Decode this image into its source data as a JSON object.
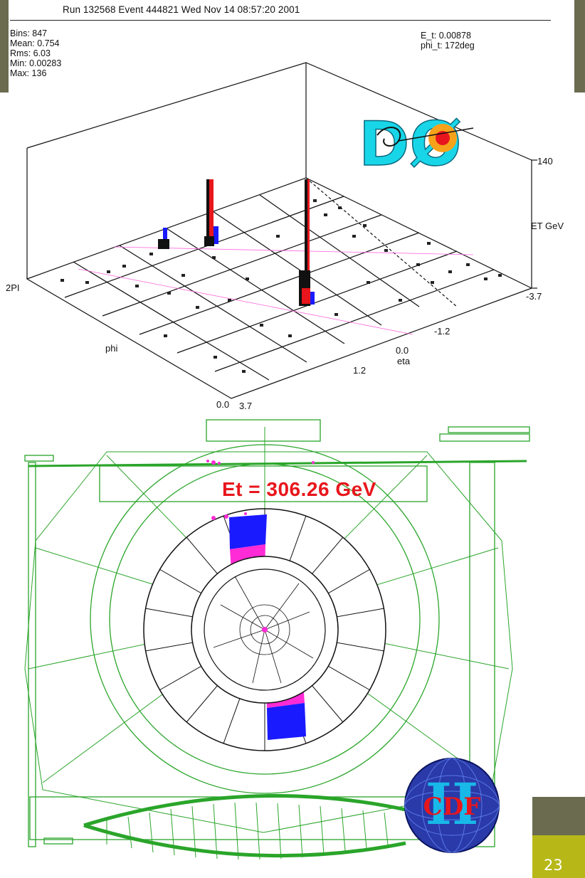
{
  "header": {
    "run_line": "Run 132568 Event 444821 Wed Nov 14 08:57:20 2001"
  },
  "stats": {
    "bins": "Bins: 847",
    "mean": "Mean: 0.754",
    "rms": "Rms: 6.03",
    "min": "Min:  0.00283",
    "max": "Max:  136"
  },
  "event": {
    "e_t": "E_t:  0.00878",
    "phi_t": "phi_t: 172deg"
  },
  "lego_plot": {
    "z_max_label": "140",
    "z_axis_label": "ET GeV",
    "phi_max_label": "2PI",
    "phi_label": "phi",
    "phi_zero_label": "0.0",
    "eta_label": "eta",
    "eta_ticks": [
      "-3.7",
      "-1.2",
      "0.0",
      "1.2",
      "3.7"
    ],
    "tower_colors": {
      "em": "#e8161c",
      "had": "#1a1aff",
      "dark": "#111111"
    }
  },
  "cdf_display": {
    "et_text": "Et = 306.26 GeV",
    "colors": {
      "outline": "#2aa52a",
      "em": "#ff2bd6",
      "had": "#1a1aff"
    }
  },
  "logos": {
    "d0_letters": "DØ",
    "cdf_letters": "CDF",
    "cdf_numeral": "II"
  },
  "footer": {
    "page_number": "23"
  }
}
